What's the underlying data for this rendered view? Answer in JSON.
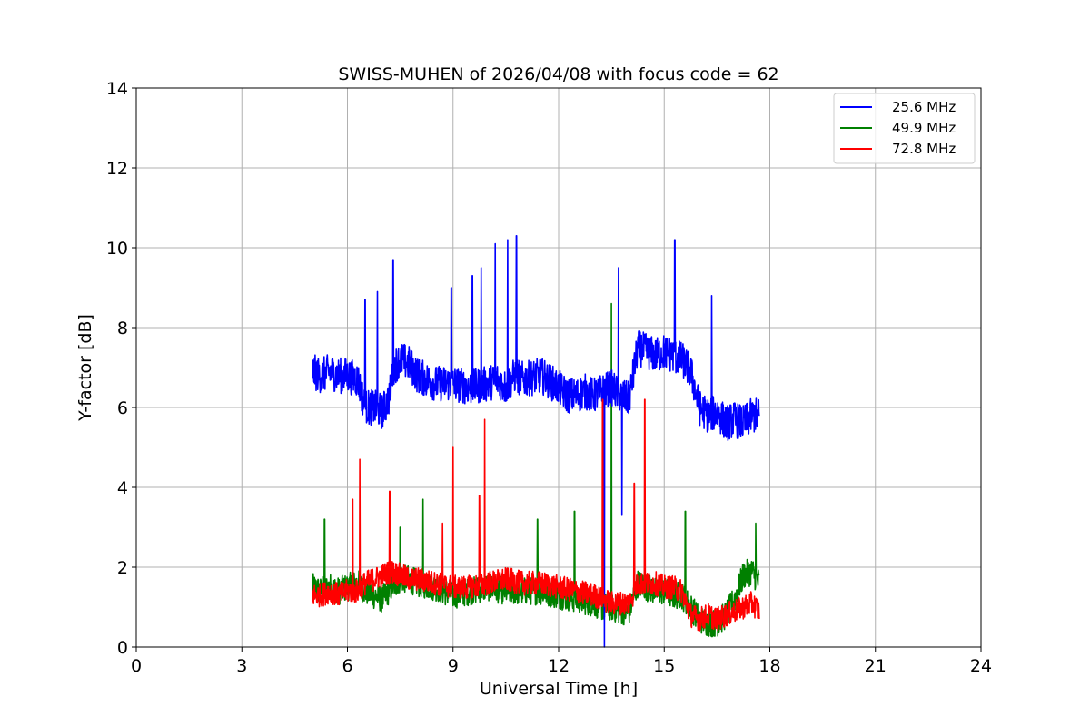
{
  "chart_data": {
    "type": "line",
    "title": "SWISS-MUHEN of 2026/04/08 with focus code = 62",
    "xlabel": "Universal Time [h]",
    "ylabel": "Y-factor [dB]",
    "xlim": [
      0,
      24
    ],
    "ylim": [
      0,
      14
    ],
    "xticks": [
      0,
      3,
      6,
      9,
      12,
      15,
      18,
      21,
      24
    ],
    "yticks": [
      0,
      2,
      4,
      6,
      8,
      10,
      12,
      14
    ],
    "grid": true,
    "legend_position": "top-right",
    "series": [
      {
        "name": "25.6 MHz",
        "color": "#0000ff",
        "x": [
          5.0,
          5.25,
          5.5,
          5.75,
          6.0,
          6.3,
          6.5,
          6.75,
          7.0,
          7.2,
          7.3,
          7.5,
          7.75,
          8.0,
          8.5,
          9.0,
          9.5,
          10.0,
          10.25,
          10.5,
          10.75,
          11.0,
          11.5,
          12.0,
          12.25,
          12.5,
          12.75,
          13.0,
          13.25,
          13.5,
          13.75,
          14.0,
          14.25,
          14.5,
          14.75,
          15.0,
          15.25,
          15.5,
          15.75,
          16.0,
          16.25,
          16.5,
          16.75,
          17.0,
          17.25,
          17.5,
          17.7
        ],
        "y": [
          6.9,
          6.8,
          6.9,
          6.8,
          6.8,
          6.7,
          6.0,
          6.0,
          5.9,
          6.3,
          7.0,
          7.2,
          7.1,
          6.8,
          6.6,
          6.6,
          6.5,
          6.6,
          6.7,
          6.5,
          6.8,
          6.7,
          6.8,
          6.5,
          6.3,
          6.3,
          6.4,
          6.3,
          6.4,
          6.5,
          6.3,
          6.2,
          7.5,
          7.4,
          7.3,
          7.4,
          7.3,
          7.2,
          6.9,
          6.0,
          5.8,
          5.9,
          5.6,
          5.7,
          5.6,
          5.8,
          5.8
        ]
      },
      {
        "name": "49.9 MHz",
        "color": "#008000",
        "x": [
          5.0,
          5.25,
          5.5,
          5.75,
          6.0,
          6.3,
          6.5,
          6.75,
          7.0,
          7.25,
          7.5,
          7.75,
          8.0,
          8.5,
          9.0,
          9.5,
          10.0,
          10.5,
          11.0,
          11.5,
          12.0,
          12.5,
          13.0,
          13.25,
          13.5,
          13.75,
          14.0,
          14.25,
          14.5,
          14.75,
          15.0,
          15.25,
          15.5,
          15.75,
          16.0,
          16.25,
          16.5,
          16.75,
          17.0,
          17.25,
          17.5,
          17.7
        ],
        "y": [
          1.5,
          1.4,
          1.5,
          1.4,
          1.5,
          1.6,
          1.4,
          1.3,
          1.2,
          1.5,
          1.7,
          1.7,
          1.6,
          1.5,
          1.3,
          1.4,
          1.5,
          1.4,
          1.4,
          1.4,
          1.3,
          1.2,
          1.1,
          1.0,
          1.0,
          0.9,
          0.9,
          1.6,
          1.5,
          1.4,
          1.4,
          1.3,
          1.3,
          1.0,
          0.7,
          0.6,
          0.6,
          0.8,
          1.2,
          1.8,
          1.9,
          1.6
        ]
      },
      {
        "name": "72.8 MHz",
        "color": "#ff0000",
        "x": [
          5.0,
          5.25,
          5.5,
          5.75,
          6.0,
          6.3,
          6.5,
          6.75,
          7.0,
          7.25,
          7.5,
          7.75,
          8.0,
          8.5,
          9.0,
          9.5,
          10.0,
          10.5,
          11.0,
          11.5,
          12.0,
          12.5,
          13.0,
          13.25,
          13.5,
          13.75,
          14.0,
          14.25,
          14.5,
          14.75,
          15.0,
          15.25,
          15.5,
          15.75,
          16.0,
          16.25,
          16.5,
          16.75,
          17.0,
          17.25,
          17.5,
          17.7
        ],
        "y": [
          1.3,
          1.3,
          1.4,
          1.3,
          1.4,
          1.4,
          1.6,
          1.7,
          1.8,
          1.9,
          1.8,
          1.7,
          1.7,
          1.6,
          1.5,
          1.5,
          1.6,
          1.7,
          1.6,
          1.6,
          1.5,
          1.4,
          1.3,
          1.2,
          1.1,
          1.1,
          1.1,
          1.6,
          1.6,
          1.6,
          1.5,
          1.5,
          1.4,
          0.8,
          0.7,
          0.8,
          0.7,
          0.8,
          0.9,
          1.0,
          1.1,
          0.9
        ]
      }
    ],
    "spikes": [
      {
        "series": "25.6 MHz",
        "x": 6.5,
        "y": 8.7
      },
      {
        "series": "25.6 MHz",
        "x": 6.85,
        "y": 8.9
      },
      {
        "series": "25.6 MHz",
        "x": 7.3,
        "y": 9.7
      },
      {
        "series": "25.6 MHz",
        "x": 8.95,
        "y": 9.0
      },
      {
        "series": "25.6 MHz",
        "x": 9.55,
        "y": 9.3
      },
      {
        "series": "25.6 MHz",
        "x": 9.8,
        "y": 9.5
      },
      {
        "series": "25.6 MHz",
        "x": 10.2,
        "y": 10.1
      },
      {
        "series": "25.6 MHz",
        "x": 10.55,
        "y": 10.2
      },
      {
        "series": "25.6 MHz",
        "x": 10.8,
        "y": 10.3
      },
      {
        "series": "25.6 MHz",
        "x": 13.7,
        "y": 9.5
      },
      {
        "series": "25.6 MHz",
        "x": 15.3,
        "y": 10.2
      },
      {
        "series": "25.6 MHz",
        "x": 16.35,
        "y": 8.8
      },
      {
        "series": "25.6 MHz",
        "x": 13.3,
        "y": 0.0
      },
      {
        "series": "25.6 MHz",
        "x": 13.8,
        "y": 3.3
      },
      {
        "series": "49.9 MHz",
        "x": 5.35,
        "y": 3.2
      },
      {
        "series": "49.9 MHz",
        "x": 7.5,
        "y": 3.0
      },
      {
        "series": "49.9 MHz",
        "x": 8.15,
        "y": 3.7
      },
      {
        "series": "49.9 MHz",
        "x": 11.4,
        "y": 3.2
      },
      {
        "series": "49.9 MHz",
        "x": 12.45,
        "y": 3.4
      },
      {
        "series": "49.9 MHz",
        "x": 13.5,
        "y": 8.6
      },
      {
        "series": "49.9 MHz",
        "x": 15.6,
        "y": 3.4
      },
      {
        "series": "49.9 MHz",
        "x": 17.6,
        "y": 3.1
      },
      {
        "series": "72.8 MHz",
        "x": 6.35,
        "y": 4.7
      },
      {
        "series": "72.8 MHz",
        "x": 6.15,
        "y": 3.7
      },
      {
        "series": "72.8 MHz",
        "x": 7.2,
        "y": 3.9
      },
      {
        "series": "72.8 MHz",
        "x": 8.7,
        "y": 3.1
      },
      {
        "series": "72.8 MHz",
        "x": 9.0,
        "y": 5.0
      },
      {
        "series": "72.8 MHz",
        "x": 9.75,
        "y": 3.8
      },
      {
        "series": "72.8 MHz",
        "x": 9.9,
        "y": 5.7
      },
      {
        "series": "72.8 MHz",
        "x": 13.25,
        "y": 6.2
      },
      {
        "series": "72.8 MHz",
        "x": 14.15,
        "y": 4.1
      },
      {
        "series": "72.8 MHz",
        "x": 14.45,
        "y": 6.2
      }
    ]
  }
}
